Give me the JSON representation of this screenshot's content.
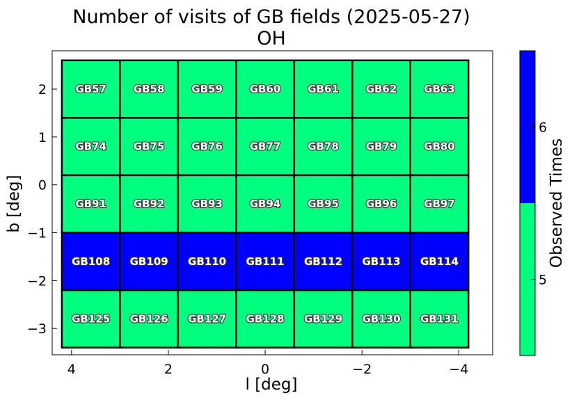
{
  "chart_data": {
    "type": "heatmap",
    "title": "Number of visits of GB fields (2025-05-27)",
    "subtitle": "OH",
    "xlabel": "l [deg]",
    "ylabel": "b [deg]",
    "xlim": [
      4.4,
      -4.7
    ],
    "ylim": [
      -3.55,
      2.8
    ],
    "x_inverted": true,
    "xticks": [
      4,
      2,
      0,
      -2,
      -4
    ],
    "xtick_labels": [
      "4",
      "2",
      "0",
      "−2",
      "−4"
    ],
    "yticks": [
      2,
      1,
      0,
      -1,
      -2,
      -3
    ],
    "ytick_labels": [
      "2",
      "1",
      "0",
      "−1",
      "−2",
      "−3"
    ],
    "column_l_centers": [
      3.6,
      2.4,
      1.2,
      0.0,
      -1.2,
      -2.4,
      -3.6
    ],
    "row_b_centers": [
      2.0,
      0.8,
      -0.4,
      -1.6,
      -2.8
    ],
    "cell_width_deg": 1.2,
    "cell_height_deg": 1.2,
    "fields": [
      [
        "GB57",
        "GB58",
        "GB59",
        "GB60",
        "GB61",
        "GB62",
        "GB63"
      ],
      [
        "GB74",
        "GB75",
        "GB76",
        "GB77",
        "GB78",
        "GB79",
        "GB80"
      ],
      [
        "GB91",
        "GB92",
        "GB93",
        "GB94",
        "GB95",
        "GB96",
        "GB97"
      ],
      [
        "GB108",
        "GB109",
        "GB110",
        "GB111",
        "GB112",
        "GB113",
        "GB114"
      ],
      [
        "GB125",
        "GB126",
        "GB127",
        "GB128",
        "GB129",
        "GB130",
        "GB131"
      ]
    ],
    "values": [
      [
        5,
        5,
        5,
        5,
        5,
        5,
        5
      ],
      [
        5,
        5,
        5,
        5,
        5,
        5,
        5
      ],
      [
        5,
        5,
        5,
        5,
        5,
        5,
        5
      ],
      [
        6,
        6,
        6,
        6,
        6,
        6,
        6
      ],
      [
        5,
        5,
        5,
        5,
        5,
        5,
        5
      ]
    ],
    "colorbar": {
      "label": "Observed Times",
      "ticks": [
        5,
        6
      ],
      "tick_labels": [
        "5",
        "6"
      ],
      "range": [
        4.5,
        6.5
      ],
      "boundaries": [
        4.5,
        5.5,
        6.5
      ],
      "colors": {
        "5": "#00ff7f",
        "6": "#0000ff"
      }
    },
    "grid": false
  }
}
